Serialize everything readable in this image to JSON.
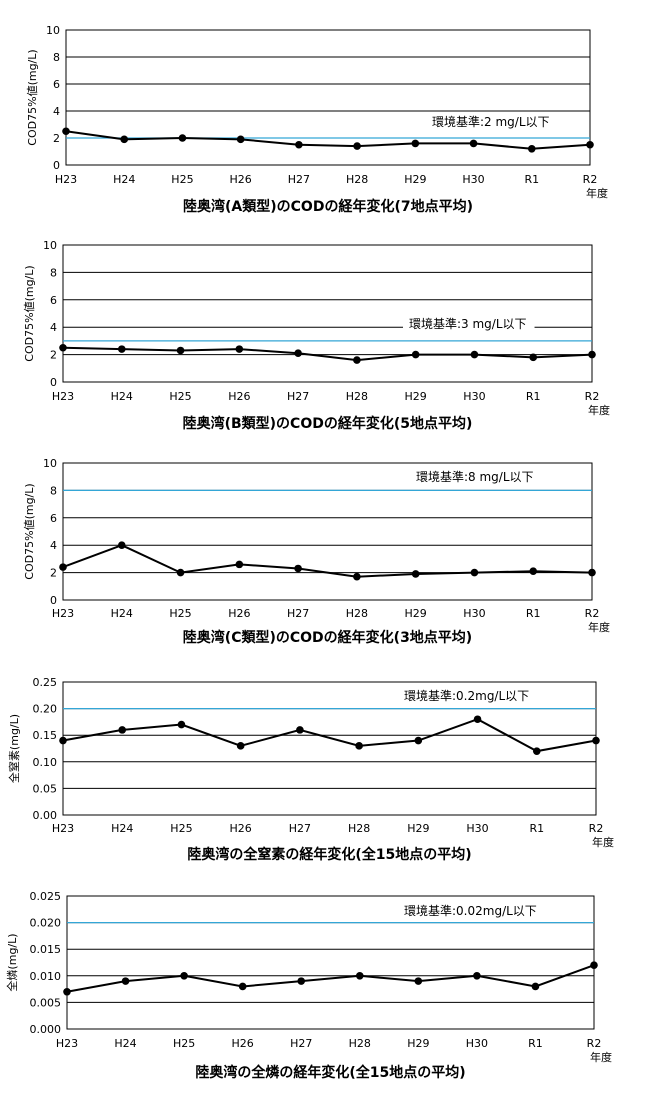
{
  "chart_data": [
    {
      "type": "line",
      "categories": [
        "H23",
        "H24",
        "H25",
        "H26",
        "H27",
        "H28",
        "H29",
        "H30",
        "R1",
        "R2"
      ],
      "values": [
        2.5,
        1.9,
        2.0,
        1.9,
        1.5,
        1.4,
        1.6,
        1.6,
        1.2,
        1.5
      ],
      "ylabel": "COD75%値(mg/L)",
      "ylim": [
        0,
        10
      ],
      "yticks": [
        "0",
        "2",
        "4",
        "6",
        "8",
        "10"
      ],
      "standard_value": 2,
      "standard_label": "環境基準:2 mg/L以下",
      "xunit": "年度",
      "title": "陸奥湾(A類型)のCODの経年変化(7地点平均)",
      "grid": true,
      "color_line": "#000000",
      "color_standard": "#33a6d6"
    },
    {
      "type": "line",
      "categories": [
        "H23",
        "H24",
        "H25",
        "H26",
        "H27",
        "H28",
        "H29",
        "H30",
        "R1",
        "R2"
      ],
      "values": [
        2.5,
        2.4,
        2.3,
        2.4,
        2.1,
        1.6,
        2.0,
        2.0,
        1.8,
        2.0
      ],
      "ylabel": "COD75%値(mg/L)",
      "ylim": [
        0,
        10
      ],
      "yticks": [
        "0",
        "2",
        "4",
        "6",
        "8",
        "10"
      ],
      "standard_value": 3,
      "standard_label": "環境基準:3 mg/L以下",
      "xunit": "年度",
      "title": "陸奥湾(B類型)のCODの経年変化(5地点平均)",
      "grid": true,
      "color_line": "#000000",
      "color_standard": "#33a6d6"
    },
    {
      "type": "line",
      "categories": [
        "H23",
        "H24",
        "H25",
        "H26",
        "H27",
        "H28",
        "H29",
        "H30",
        "R1",
        "R2"
      ],
      "values": [
        2.4,
        4.0,
        2.0,
        2.6,
        2.3,
        1.7,
        1.9,
        2.0,
        2.1,
        2.0
      ],
      "ylabel": "COD75%値(mg/L)",
      "ylim": [
        0,
        10
      ],
      "yticks": [
        "0",
        "2",
        "4",
        "6",
        "8",
        "10"
      ],
      "standard_value": 8,
      "standard_label": "環境基準:8 mg/L以下",
      "xunit": "年度",
      "title": "陸奥湾(C類型)のCODの経年変化(3地点平均)",
      "grid": true,
      "color_line": "#000000",
      "color_standard": "#33a6d6"
    },
    {
      "type": "line",
      "categories": [
        "H23",
        "H24",
        "H25",
        "H26",
        "H27",
        "H28",
        "H29",
        "H30",
        "R1",
        "R2"
      ],
      "values": [
        0.14,
        0.16,
        0.17,
        0.13,
        0.16,
        0.13,
        0.14,
        0.18,
        0.12,
        0.14
      ],
      "ylabel": "全窒素(mg/L)",
      "ylim": [
        0,
        0.25
      ],
      "yticks": [
        "0.00",
        "0.05",
        "0.10",
        "0.15",
        "0.20",
        "0.25"
      ],
      "standard_value": 0.2,
      "standard_label": "環境基準:0.2mg/L以下",
      "xunit": "年度",
      "title": "陸奥湾の全窒素の経年変化(全15地点の平均)",
      "grid": true,
      "color_line": "#000000",
      "color_standard": "#33a6d6"
    },
    {
      "type": "line",
      "categories": [
        "H23",
        "H24",
        "H25",
        "H26",
        "H27",
        "H28",
        "H29",
        "H30",
        "R1",
        "R2"
      ],
      "values": [
        0.007,
        0.009,
        0.01,
        0.008,
        0.009,
        0.01,
        0.009,
        0.01,
        0.008,
        0.012
      ],
      "ylabel": "全燐(mg/L)",
      "ylim": [
        0,
        0.025
      ],
      "yticks": [
        "0.000",
        "0.005",
        "0.010",
        "0.015",
        "0.020",
        "0.025"
      ],
      "standard_value": 0.02,
      "standard_label": "環境基準:0.02mg/L以下",
      "xunit": "年度",
      "title": "陸奥湾の全燐の経年変化(全15地点の平均)",
      "grid": true,
      "color_line": "#000000",
      "color_standard": "#33a6d6"
    }
  ]
}
